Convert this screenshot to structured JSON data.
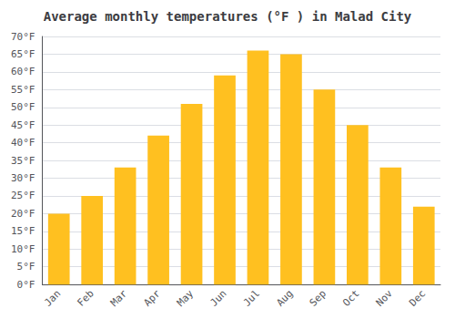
{
  "chart_data": {
    "type": "bar",
    "title": "Average monthly temperatures (°F ) in Malad City",
    "categories": [
      "Jan",
      "Feb",
      "Mar",
      "Apr",
      "May",
      "Jun",
      "Jul",
      "Aug",
      "Sep",
      "Oct",
      "Nov",
      "Dec"
    ],
    "values": [
      20,
      25,
      33,
      42,
      51,
      59,
      66,
      65,
      55,
      45,
      33,
      22
    ],
    "color": "#FFC020",
    "ylim": [
      0,
      70
    ],
    "yticks": [
      {
        "value": 0,
        "label": "0°F"
      },
      {
        "value": 5,
        "label": "5°F"
      },
      {
        "value": 10,
        "label": "10°F"
      },
      {
        "value": 15,
        "label": "15°F"
      },
      {
        "value": 20,
        "label": "20°F"
      },
      {
        "value": 25,
        "label": "25°F"
      },
      {
        "value": 30,
        "label": "30°F"
      },
      {
        "value": 35,
        "label": "35°F"
      },
      {
        "value": 40,
        "label": "40°F"
      },
      {
        "value": 45,
        "label": "45°F"
      },
      {
        "value": 50,
        "label": "50°F"
      },
      {
        "value": 55,
        "label": "55°F"
      },
      {
        "value": 60,
        "label": "60°F"
      },
      {
        "value": 65,
        "label": "65°F"
      },
      {
        "value": 70,
        "label": "70°F"
      }
    ],
    "grid": true
  }
}
